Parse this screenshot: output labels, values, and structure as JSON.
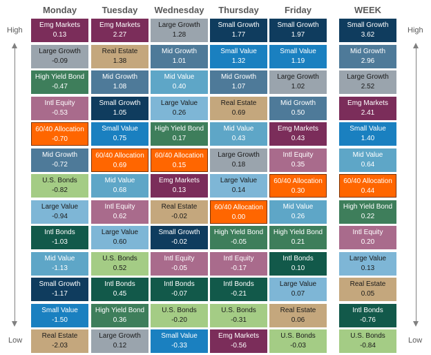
{
  "labels": {
    "high": "High",
    "low": "Low"
  },
  "colors": {
    "Emg Markets": "#7b2d5a",
    "Large Growth": "#9aa4ad",
    "High Yield Bond": "#3e7e5b",
    "Intl Equity": "#a96b8c",
    "60/40 Allocation": "#ff6600",
    "Mid Growth": "#4e7a99",
    "U.S. Bonds": "#a4cc85",
    "Large Value": "#7eb6d6",
    "Intl Bonds": "#12594a",
    "Mid Value": "#5ea6c7",
    "Small Growth": "#0f3c5e",
    "Small Value": "#1a80c0",
    "Real Estate": "#c4a77d"
  },
  "chart_data": {
    "type": "table",
    "columns": [
      {
        "header": "Monday",
        "items": [
          {
            "name": "Emg Markets",
            "value": "0.13"
          },
          {
            "name": "Large Growth",
            "value": "-0.09"
          },
          {
            "name": "High Yield Bond",
            "value": "-0.47"
          },
          {
            "name": "Intl Equity",
            "value": "-0.53"
          },
          {
            "name": "60/40 Allocation",
            "value": "-0.70"
          },
          {
            "name": "Mid Growth",
            "value": "-0.72"
          },
          {
            "name": "U.S. Bonds",
            "value": "-0.82"
          },
          {
            "name": "Large Value",
            "value": "-0.94"
          },
          {
            "name": "Intl Bonds",
            "value": "-1.03"
          },
          {
            "name": "Mid Value",
            "value": "-1.13"
          },
          {
            "name": "Small Growth",
            "value": "-1.17"
          },
          {
            "name": "Small Value",
            "value": "-1.50"
          },
          {
            "name": "Real Estate",
            "value": "-2.03"
          }
        ]
      },
      {
        "header": "Tuesday",
        "items": [
          {
            "name": "Emg Markets",
            "value": "2.27"
          },
          {
            "name": "Real Estate",
            "value": "1.38"
          },
          {
            "name": "Mid Growth",
            "value": "1.08"
          },
          {
            "name": "Small Growth",
            "value": "1.05"
          },
          {
            "name": "Small Value",
            "value": "0.75"
          },
          {
            "name": "60/40 Allocation",
            "value": "0.69"
          },
          {
            "name": "Mid Value",
            "value": "0.68"
          },
          {
            "name": "Intl Equity",
            "value": "0.62"
          },
          {
            "name": "Large Value",
            "value": "0.60"
          },
          {
            "name": "U.S. Bonds",
            "value": "0.52"
          },
          {
            "name": "Intl Bonds",
            "value": "0.45"
          },
          {
            "name": "High Yield Bond",
            "value": "0.36"
          },
          {
            "name": "Large Growth",
            "value": "0.12"
          }
        ]
      },
      {
        "header": "Wednesday",
        "items": [
          {
            "name": "Large Growth",
            "value": "1.28"
          },
          {
            "name": "Mid Growth",
            "value": "1.01"
          },
          {
            "name": "Mid Value",
            "value": "0.40"
          },
          {
            "name": "Large Value",
            "value": "0.26"
          },
          {
            "name": "High Yield Bond",
            "value": "0.17"
          },
          {
            "name": "60/40 Allocation",
            "value": "0.15"
          },
          {
            "name": "Emg Markets",
            "value": "0.13"
          },
          {
            "name": "Real Estate",
            "value": "-0.02"
          },
          {
            "name": "Small Growth",
            "value": "-0.02"
          },
          {
            "name": "Intl Equity",
            "value": "-0.05"
          },
          {
            "name": "Intl Bonds",
            "value": "-0.07"
          },
          {
            "name": "U.S. Bonds",
            "value": "-0.20"
          },
          {
            "name": "Small Value",
            "value": "-0.33"
          }
        ]
      },
      {
        "header": "Thursday",
        "items": [
          {
            "name": "Small Growth",
            "value": "1.77"
          },
          {
            "name": "Small Value",
            "value": "1.32"
          },
          {
            "name": "Mid Growth",
            "value": "1.07"
          },
          {
            "name": "Real Estate",
            "value": "0.69"
          },
          {
            "name": "Mid Value",
            "value": "0.43"
          },
          {
            "name": "Large Growth",
            "value": "0.18"
          },
          {
            "name": "Large Value",
            "value": "0.14"
          },
          {
            "name": "60/40 Allocation",
            "value": "0.00"
          },
          {
            "name": "High Yield Bond",
            "value": "-0.05"
          },
          {
            "name": "Intl Equity",
            "value": "-0.17"
          },
          {
            "name": "Intl Bonds",
            "value": "-0.21"
          },
          {
            "name": "U.S. Bonds",
            "value": "-0.31"
          },
          {
            "name": "Emg Markets",
            "value": "-0.56"
          }
        ]
      },
      {
        "header": "Friday",
        "items": [
          {
            "name": "Small Growth",
            "value": "1.97"
          },
          {
            "name": "Small Value",
            "value": "1.19"
          },
          {
            "name": "Large Growth",
            "value": "1.02"
          },
          {
            "name": "Mid Growth",
            "value": "0.50"
          },
          {
            "name": "Emg Markets",
            "value": "0.43"
          },
          {
            "name": "Intl Equity",
            "value": "0.35"
          },
          {
            "name": "60/40 Allocation",
            "value": "0.30"
          },
          {
            "name": "Mid Value",
            "value": "0.26"
          },
          {
            "name": "High Yield Bond",
            "value": "0.21"
          },
          {
            "name": "Intl Bonds",
            "value": "0.10"
          },
          {
            "name": "Large Value",
            "value": "0.07"
          },
          {
            "name": "Real Estate",
            "value": "0.06"
          },
          {
            "name": "U.S. Bonds",
            "value": "-0.03"
          }
        ]
      },
      {
        "header": "WEEK",
        "items": [
          {
            "name": "Small Growth",
            "value": "3.62"
          },
          {
            "name": "Mid Growth",
            "value": "2.96"
          },
          {
            "name": "Large Growth",
            "value": "2.52"
          },
          {
            "name": "Emg Markets",
            "value": "2.41"
          },
          {
            "name": "Small Value",
            "value": "1.40"
          },
          {
            "name": "Mid Value",
            "value": "0.64"
          },
          {
            "name": "60/40 Allocation",
            "value": "0.44"
          },
          {
            "name": "High Yield Bond",
            "value": "0.22"
          },
          {
            "name": "Intl Equity",
            "value": "0.20"
          },
          {
            "name": "Large Value",
            "value": "0.13"
          },
          {
            "name": "Real Estate",
            "value": "0.05"
          },
          {
            "name": "Intl Bonds",
            "value": "-0.76"
          },
          {
            "name": "U.S. Bonds",
            "value": "-0.84"
          }
        ]
      }
    ]
  }
}
